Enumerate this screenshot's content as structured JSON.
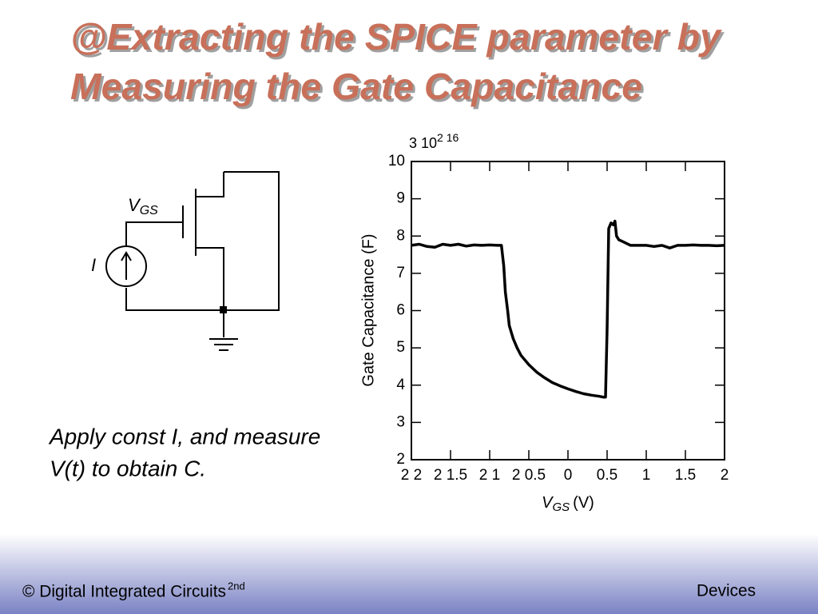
{
  "slide": {
    "title_lines": [
      "@Extracting the SPICE parameter by",
      "Measuring the Gate Capacitance"
    ],
    "circuit": {
      "vgs_label": {
        "main": "V",
        "sub": "GS"
      },
      "current_label": "I"
    },
    "caption_lines": [
      "Apply const I, and measure",
      "V(t) to obtain C."
    ],
    "footer": {
      "left": "© Digital Integrated Circuits",
      "left_sup": "2nd",
      "right": "Devices"
    }
  },
  "chart_data": {
    "type": "line",
    "y_label": "Gate Capacitance (F)",
    "x_label": {
      "main": "V",
      "sub": "GS",
      "unit": "(V)"
    },
    "axis_multiplier": {
      "base": "3  10",
      "exponent": "2 16"
    },
    "color": "#000000",
    "x": [
      -2,
      -1.9,
      -1.8,
      -1.7,
      -1.6,
      -1.5,
      -1.4,
      -1.3,
      -1.2,
      -1.1,
      -1,
      -0.9,
      -0.85,
      -0.82,
      -0.8,
      -0.77,
      -0.75,
      -0.7,
      -0.65,
      -0.6,
      -0.5,
      -0.4,
      -0.3,
      -0.2,
      -0.1,
      0,
      0.1,
      0.2,
      0.3,
      0.4,
      0.45,
      0.48,
      0.5,
      0.52,
      0.55,
      0.58,
      0.6,
      0.62,
      0.65,
      0.7,
      0.8,
      0.9,
      1,
      1.1,
      1.2,
      1.3,
      1.4,
      1.5,
      1.6,
      1.7,
      1.8,
      1.9,
      2
    ],
    "values": [
      7.75,
      7.78,
      7.72,
      7.7,
      7.78,
      7.75,
      7.78,
      7.73,
      7.76,
      7.75,
      7.76,
      7.75,
      7.75,
      7.2,
      6.5,
      6.0,
      5.6,
      5.25,
      5.0,
      4.8,
      4.55,
      4.35,
      4.2,
      4.07,
      3.98,
      3.9,
      3.83,
      3.77,
      3.73,
      3.7,
      3.68,
      3.68,
      5.5,
      8.2,
      8.35,
      8.3,
      8.4,
      8.0,
      7.9,
      7.85,
      7.75,
      7.75,
      7.75,
      7.72,
      7.75,
      7.68,
      7.75,
      7.75,
      7.76,
      7.75,
      7.75,
      7.74,
      7.75
    ],
    "xlim": [
      -2,
      2
    ],
    "xticks": [
      {
        "value": -2,
        "label": "2 2"
      },
      {
        "value": -1.5,
        "label": "2 1.5"
      },
      {
        "value": -1,
        "label": "2 1"
      },
      {
        "value": -0.5,
        "label": "2 0.5"
      },
      0,
      0.5,
      1,
      1.5,
      2
    ],
    "ylim": [
      2,
      10
    ],
    "yticks": [
      2,
      3,
      4,
      5,
      6,
      7,
      8,
      9,
      10
    ],
    "grid": false
  }
}
